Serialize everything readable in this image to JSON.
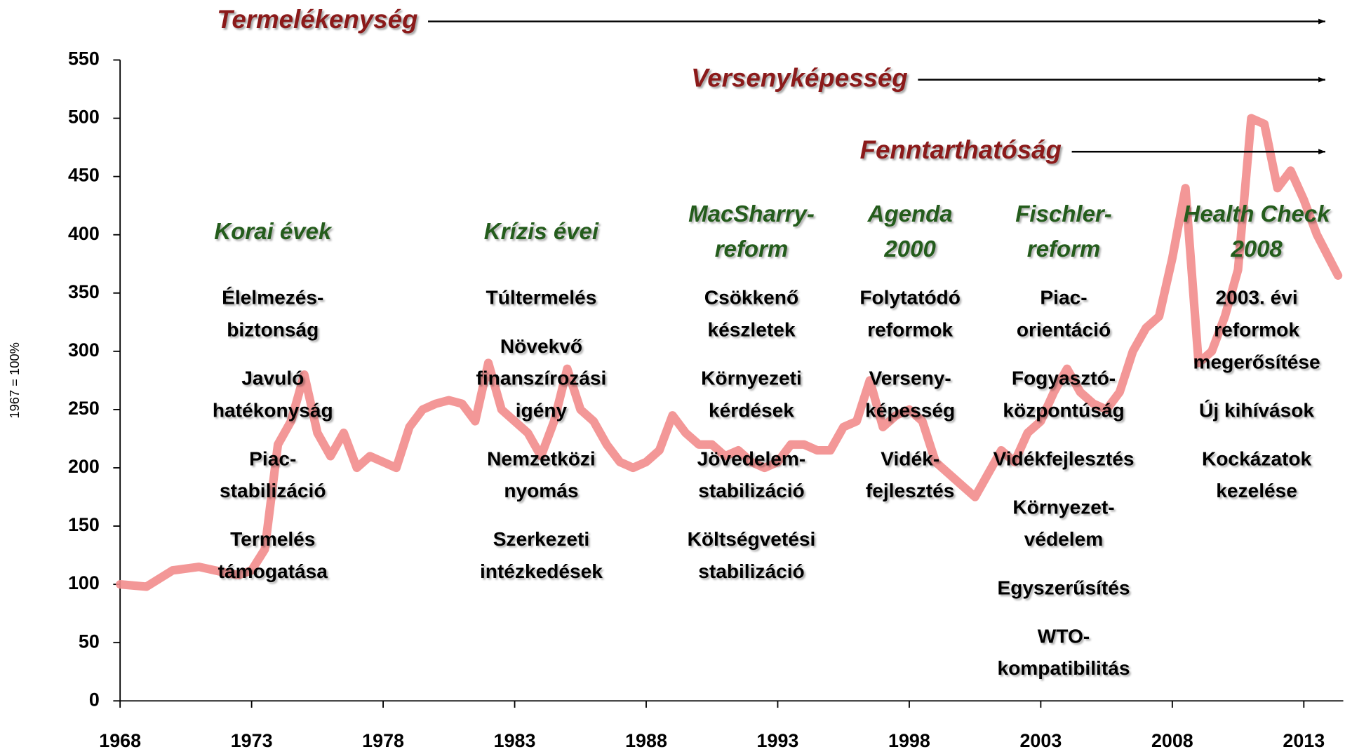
{
  "chart_data": {
    "type": "line",
    "ylabel": "1967 = 100%",
    "color": "#f28c8c",
    "xlim": [
      1968,
      2014.5
    ],
    "ylim": [
      0,
      550
    ],
    "xticks": [
      1968,
      1973,
      1978,
      1983,
      1988,
      1993,
      1998,
      2003,
      2008,
      2013
    ],
    "yticks": [
      0,
      50,
      100,
      150,
      200,
      250,
      300,
      350,
      400,
      450,
      500,
      550
    ],
    "x": [
      1968,
      1969,
      1970,
      1971,
      1972,
      1972.5,
      1973,
      1973.5,
      1974,
      1974.5,
      1975,
      1975.5,
      1976,
      1976.5,
      1977,
      1977.5,
      1978,
      1978.5,
      1979,
      1979.5,
      1980,
      1980.5,
      1981,
      1981.5,
      1982,
      1982.5,
      1983,
      1983.5,
      1984,
      1984.5,
      1985,
      1985.5,
      1986,
      1986.5,
      1987,
      1987.5,
      1988,
      1988.5,
      1989,
      1989.5,
      1990,
      1990.5,
      1991,
      1991.5,
      1992,
      1992.5,
      1993,
      1993.5,
      1994,
      1994.5,
      1995,
      1995.5,
      1996,
      1996.5,
      1997,
      1997.5,
      1998,
      1998.5,
      1999,
      1999.5,
      2000,
      2000.5,
      2001,
      2001.5,
      2002,
      2002.5,
      2003,
      2003.5,
      2004,
      2004.5,
      2005,
      2005.5,
      2006,
      2006.5,
      2007,
      2007.5,
      2008,
      2008.5,
      2009,
      2009.5,
      2010,
      2010.5,
      2011,
      2011.5,
      2012,
      2012.5,
      2013,
      2013.5,
      2014.3
    ],
    "values": [
      100,
      98,
      112,
      115,
      110,
      108,
      112,
      130,
      220,
      240,
      280,
      230,
      210,
      230,
      200,
      210,
      205,
      200,
      235,
      250,
      255,
      258,
      255,
      240,
      290,
      250,
      240,
      230,
      210,
      240,
      285,
      250,
      240,
      220,
      205,
      200,
      205,
      215,
      245,
      230,
      220,
      220,
      210,
      215,
      205,
      200,
      205,
      220,
      220,
      215,
      215,
      235,
      240,
      275,
      235,
      245,
      250,
      240,
      205,
      195,
      185,
      175,
      195,
      215,
      205,
      230,
      240,
      265,
      285,
      265,
      255,
      250,
      265,
      300,
      320,
      330,
      380,
      440,
      290,
      300,
      330,
      370,
      500,
      495,
      440,
      455,
      430,
      400,
      365
    ],
    "arrows": [
      "Termelékenység",
      "Versenyképesség",
      "Fenntarthatóság"
    ],
    "periods": [
      {
        "title": [
          "Korai évek"
        ],
        "items": [
          [
            "Élelmezés-",
            "biztonság"
          ],
          [
            "Javuló",
            "hatékonyság"
          ],
          [
            "Piac-",
            "stabilizáció"
          ],
          [
            "Termelés",
            "támogatása"
          ]
        ]
      },
      {
        "title": [
          "Krízis évei"
        ],
        "items": [
          [
            "Túltermelés"
          ],
          [
            "Növekvő",
            "finanszírozási",
            "igény"
          ],
          [
            "Nemzetközi",
            "nyomás"
          ],
          [
            "Szerkezeti",
            "intézkedések"
          ]
        ]
      },
      {
        "title": [
          "MacSharry-",
          "reform"
        ],
        "items": [
          [
            "Csökkenő",
            "készletek"
          ],
          [
            "Környezeti",
            "kérdések"
          ],
          [
            "Jövedelem-",
            "stabilizáció"
          ],
          [
            "Költségvetési",
            "stabilizáció"
          ]
        ]
      },
      {
        "title": [
          "Agenda",
          "2000"
        ],
        "items": [
          [
            "Folytatódó",
            "reformok"
          ],
          [
            "Verseny-",
            "képesség"
          ],
          [
            "Vidék-",
            "fejlesztés"
          ]
        ]
      },
      {
        "title": [
          "Fischler-",
          "reform"
        ],
        "items": [
          [
            "Piac-",
            "orientáció"
          ],
          [
            "Fogyasztó-",
            "központúság"
          ],
          [
            "Vidékfejlesztés"
          ],
          [
            "Környezet-",
            "védelem"
          ],
          [
            "Egyszerűsítés"
          ],
          [
            "WTO-",
            "kompatibilitás"
          ]
        ]
      },
      {
        "title": [
          "Health Check",
          "2008"
        ],
        "items": [
          [
            "2003. évi",
            "reformok",
            "megerősítése"
          ],
          [
            "Új kihívások"
          ],
          [
            "Kockázatok",
            "kezelése"
          ]
        ]
      }
    ]
  }
}
